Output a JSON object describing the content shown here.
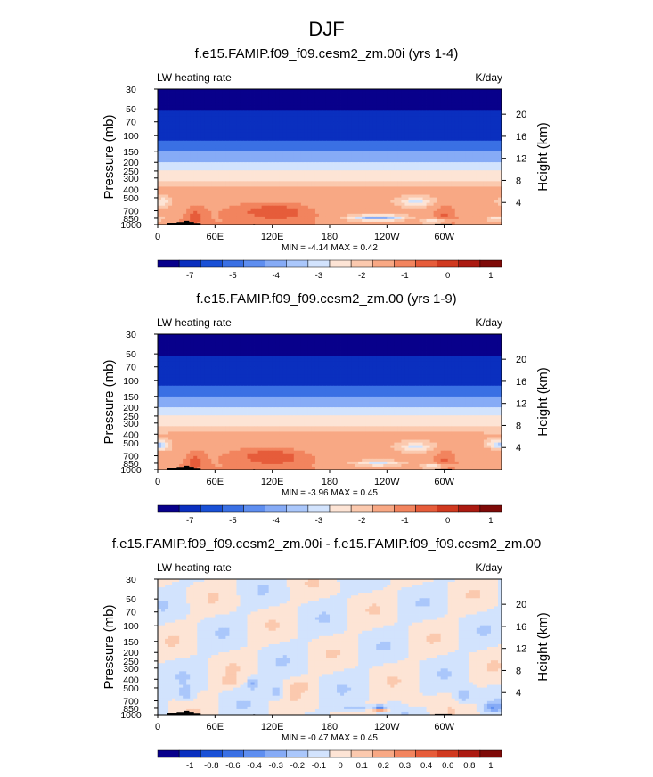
{
  "figure": {
    "title": "DJF"
  },
  "chart_data": [
    {
      "type": "heatmap",
      "title": "f.e15.FAMIP.f09_f09.cesm2_zm.00i (yrs 1-4)",
      "left_label": "LW heating rate",
      "units": "K/day",
      "ylabel": "Pressure (mb)",
      "ylabel_right": "Height (km)",
      "x_ticks": [
        "0",
        "60E",
        "120E",
        "180",
        "120W",
        "60W"
      ],
      "x_tick_lon": [
        0,
        60,
        120,
        180,
        240,
        300
      ],
      "xlim": [
        0,
        360
      ],
      "y_ticks": [
        "30",
        "50",
        "70",
        "100",
        "150",
        "200",
        "250",
        "300",
        "400",
        "500",
        "700",
        "850",
        "1000"
      ],
      "y_tick_p": [
        30,
        50,
        70,
        100,
        150,
        200,
        250,
        300,
        400,
        500,
        700,
        850,
        1000
      ],
      "y_scale": "log",
      "ylim": [
        1000,
        30
      ],
      "height_ticks": [
        "20",
        "16",
        "12",
        "8",
        "4"
      ],
      "height_tick_km": [
        20,
        16,
        12,
        8,
        4
      ],
      "stats": "MIN = -4.14  MAX =  0.42",
      "colorbar_labels": [
        "-7",
        "-5",
        "-4",
        "-3",
        "-2",
        "-1",
        "0",
        "1"
      ],
      "colorbar_label_bins": [
        1,
        3,
        5,
        7,
        9,
        11,
        13,
        15
      ],
      "field": "abs",
      "anomalies": [
        {
          "lon": 130,
          "p": 720,
          "dlon": 28,
          "dlogp": 0.09,
          "v": 0.9
        },
        {
          "lon": 100,
          "p": 700,
          "dlon": 35,
          "dlogp": 0.1,
          "v": 0.5
        },
        {
          "lon": 40,
          "p": 820,
          "dlon": 10,
          "dlogp": 0.12,
          "v": 0.8
        },
        {
          "lon": 300,
          "p": 780,
          "dlon": 10,
          "dlogp": 0.12,
          "v": 0.7
        },
        {
          "lon": 230,
          "p": 840,
          "dlon": 28,
          "dlogp": 0.035,
          "v": -2.8
        },
        {
          "lon": 270,
          "p": 560,
          "dlon": 18,
          "dlogp": 0.05,
          "v": -1.4
        },
        {
          "lon": 5,
          "p": 560,
          "dlon": 8,
          "dlogp": 0.05,
          "v": -1.2
        },
        {
          "lon": 290,
          "p": 920,
          "dlon": 14,
          "dlogp": 0.03,
          "v": -1.5
        },
        {
          "lon": 355,
          "p": 860,
          "dlon": 12,
          "dlogp": 0.03,
          "v": -1.2
        }
      ]
    },
    {
      "type": "heatmap",
      "title": "f.e15.FAMIP.f09_f09.cesm2_zm.00 (yrs 1-9)",
      "left_label": "LW heating rate",
      "units": "K/day",
      "ylabel": "Pressure (mb)",
      "ylabel_right": "Height (km)",
      "x_ticks": [
        "0",
        "60E",
        "120E",
        "180",
        "120W",
        "60W"
      ],
      "x_tick_lon": [
        0,
        60,
        120,
        180,
        240,
        300
      ],
      "xlim": [
        0,
        360
      ],
      "y_ticks": [
        "30",
        "50",
        "70",
        "100",
        "150",
        "200",
        "250",
        "300",
        "400",
        "500",
        "700",
        "850",
        "1000"
      ],
      "y_tick_p": [
        30,
        50,
        70,
        100,
        150,
        200,
        250,
        300,
        400,
        500,
        700,
        850,
        1000
      ],
      "y_scale": "log",
      "ylim": [
        1000,
        30
      ],
      "height_ticks": [
        "20",
        "16",
        "12",
        "8",
        "4"
      ],
      "height_tick_km": [
        20,
        16,
        12,
        8,
        4
      ],
      "stats": "MIN = -3.96  MAX =  0.45",
      "colorbar_labels": [
        "-7",
        "-5",
        "-4",
        "-3",
        "-2",
        "-1",
        "0",
        "1"
      ],
      "colorbar_label_bins": [
        1,
        3,
        5,
        7,
        9,
        11,
        13,
        15
      ],
      "field": "abs",
      "anomalies": [
        {
          "lon": 125,
          "p": 720,
          "dlon": 30,
          "dlogp": 0.09,
          "v": 0.85
        },
        {
          "lon": 100,
          "p": 700,
          "dlon": 35,
          "dlogp": 0.1,
          "v": 0.45
        },
        {
          "lon": 40,
          "p": 820,
          "dlon": 10,
          "dlogp": 0.12,
          "v": 0.8
        },
        {
          "lon": 300,
          "p": 780,
          "dlon": 10,
          "dlogp": 0.12,
          "v": 0.7
        },
        {
          "lon": 230,
          "p": 850,
          "dlon": 28,
          "dlogp": 0.035,
          "v": -1.6
        },
        {
          "lon": 270,
          "p": 560,
          "dlon": 18,
          "dlogp": 0.05,
          "v": -1.4
        },
        {
          "lon": 5,
          "p": 540,
          "dlon": 8,
          "dlogp": 0.05,
          "v": -1.3
        },
        {
          "lon": 355,
          "p": 520,
          "dlon": 10,
          "dlogp": 0.05,
          "v": -1.3
        },
        {
          "lon": 290,
          "p": 920,
          "dlon": 14,
          "dlogp": 0.03,
          "v": -1.4
        }
      ]
    },
    {
      "type": "heatmap",
      "title": "f.e15.FAMIP.f09_f09.cesm2_zm.00i - f.e15.FAMIP.f09_f09.cesm2_zm.00",
      "left_label": "LW heating rate",
      "units": "K/day",
      "ylabel": "Pressure (mb)",
      "ylabel_right": "Height (km)",
      "x_ticks": [
        "0",
        "60E",
        "120E",
        "180",
        "120W",
        "60W"
      ],
      "x_tick_lon": [
        0,
        60,
        120,
        180,
        240,
        300
      ],
      "xlim": [
        0,
        360
      ],
      "y_ticks": [
        "30",
        "50",
        "70",
        "100",
        "150",
        "200",
        "250",
        "300",
        "400",
        "500",
        "700",
        "850",
        "1000"
      ],
      "y_tick_p": [
        30,
        50,
        70,
        100,
        150,
        200,
        250,
        300,
        400,
        500,
        700,
        850,
        1000
      ],
      "y_scale": "log",
      "ylim": [
        1000,
        30
      ],
      "height_ticks": [
        "20",
        "16",
        "12",
        "8",
        "4"
      ],
      "height_tick_km": [
        20,
        16,
        12,
        8,
        4
      ],
      "stats": "MIN = -0.47  MAX =  0.45",
      "colorbar_labels": [
        "-1",
        "-0.8",
        "-0.6",
        "-0.4",
        "-0.3",
        "-0.2",
        "-0.1",
        "0",
        "0.1",
        "0.2",
        "0.3",
        "0.4",
        "0.6",
        "0.8",
        "1"
      ],
      "colorbar_label_bins": [
        1,
        2,
        3,
        4,
        5,
        6,
        7,
        8,
        9,
        10,
        11,
        12,
        13,
        14,
        15
      ],
      "field": "diff",
      "anomalies": [
        {
          "lon": 232,
          "p": 835,
          "dlon": 6,
          "dlogp": 0.025,
          "v": -0.47
        },
        {
          "lon": 232,
          "p": 880,
          "dlon": 10,
          "dlogp": 0.02,
          "v": 0.45
        },
        {
          "lon": 210,
          "p": 860,
          "dlon": 20,
          "dlogp": 0.03,
          "v": -0.2
        },
        {
          "lon": 100,
          "p": 440,
          "dlon": 6,
          "dlogp": 0.06,
          "v": -0.25
        },
        {
          "lon": 125,
          "p": 560,
          "dlon": 8,
          "dlogp": 0.08,
          "v": -0.2
        },
        {
          "lon": 75,
          "p": 430,
          "dlon": 8,
          "dlogp": 0.05,
          "v": 0.12
        },
        {
          "lon": 150,
          "p": 470,
          "dlon": 10,
          "dlogp": 0.05,
          "v": 0.12
        },
        {
          "lon": 320,
          "p": 620,
          "dlon": 10,
          "dlogp": 0.1,
          "v": -0.2
        },
        {
          "lon": 350,
          "p": 830,
          "dlon": 10,
          "dlogp": 0.05,
          "v": -0.25
        },
        {
          "lon": 30,
          "p": 600,
          "dlon": 8,
          "dlogp": 0.08,
          "v": -0.15
        },
        {
          "lon": 270,
          "p": 720,
          "dlon": 14,
          "dlogp": 0.06,
          "v": 0.1
        }
      ]
    }
  ],
  "colors": {
    "colorbar": [
      "#08008b",
      "#0a2fbf",
      "#1950d6",
      "#3a70e4",
      "#5e8ef0",
      "#86abf6",
      "#aac7fb",
      "#d2e3fd",
      "#fde4d5",
      "#fbc9ae",
      "#f8a884",
      "#f2845e",
      "#e65c3a",
      "#d0391f",
      "#ab1a11",
      "#7e0a08"
    ],
    "land": "#000000"
  }
}
